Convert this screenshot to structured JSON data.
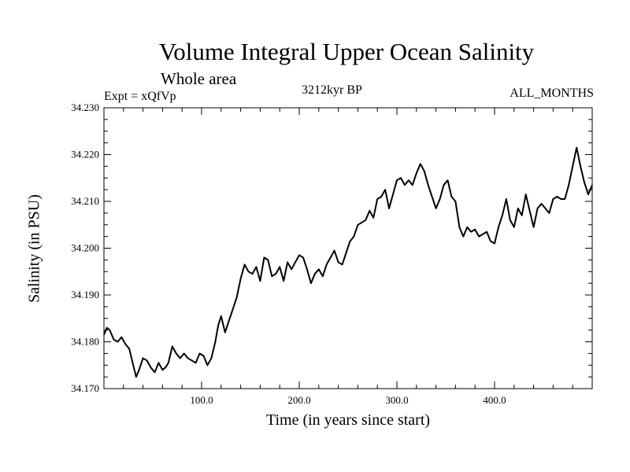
{
  "chart_data": {
    "type": "line",
    "title": "Volume Integral Upper Ocean Salinity",
    "subtitle": "Whole area",
    "experiment_label": "Expt = xQfVp",
    "period_label": "3212kyr BP",
    "months_label": "ALL_MONTHS",
    "xlabel": "Time (in years since start)",
    "ylabel": "Salinity (in PSU)",
    "xlim": [
      0,
      500
    ],
    "ylim": [
      34.17,
      34.23
    ],
    "x_ticks": [
      100,
      200,
      300,
      400
    ],
    "x_tick_labels": [
      "100.0",
      "200.0",
      "300.0",
      "400.0"
    ],
    "y_ticks": [
      34.17,
      34.18,
      34.19,
      34.2,
      34.21,
      34.22,
      34.23
    ],
    "y_tick_labels": [
      "34.170",
      "34.180",
      "34.190",
      "34.200",
      "34.210",
      "34.220",
      "34.230"
    ],
    "series": [
      {
        "name": "salinity",
        "color": "#000000",
        "x": [
          0,
          3,
          6,
          10,
          14,
          18,
          22,
          26,
          30,
          33,
          36,
          40,
          44,
          48,
          52,
          56,
          60,
          63,
          66,
          70,
          74,
          78,
          82,
          86,
          90,
          94,
          98,
          102,
          106,
          110,
          114,
          117,
          120,
          124,
          128,
          132,
          136,
          140,
          144,
          148,
          152,
          156,
          160,
          164,
          168,
          172,
          176,
          180,
          184,
          188,
          192,
          196,
          200,
          204,
          208,
          212,
          216,
          220,
          224,
          228,
          232,
          236,
          240,
          244,
          248,
          252,
          256,
          260,
          264,
          268,
          272,
          276,
          280,
          284,
          288,
          292,
          296,
          300,
          304,
          308,
          312,
          316,
          320,
          324,
          328,
          332,
          336,
          340,
          344,
          348,
          352,
          356,
          360,
          364,
          368,
          372,
          376,
          380,
          384,
          388,
          392,
          396,
          400,
          404,
          408,
          412,
          416,
          420,
          424,
          428,
          432,
          436,
          440,
          444,
          448,
          452,
          456,
          460,
          464,
          468,
          472,
          476,
          480,
          484,
          488,
          492,
          496,
          500
        ],
        "values": [
          34.1815,
          34.183,
          34.1825,
          34.1805,
          34.18,
          34.181,
          34.1795,
          34.1785,
          34.175,
          34.1725,
          34.174,
          34.1765,
          34.176,
          34.1745,
          34.1735,
          34.1755,
          34.174,
          34.1745,
          34.1755,
          34.179,
          34.1775,
          34.1765,
          34.1775,
          34.1765,
          34.176,
          34.1755,
          34.1775,
          34.177,
          34.175,
          34.1765,
          34.18,
          34.1835,
          34.1855,
          34.182,
          34.1845,
          34.187,
          34.1895,
          34.1935,
          34.1965,
          34.195,
          34.1945,
          34.196,
          34.193,
          34.198,
          34.1975,
          34.194,
          34.1945,
          34.196,
          34.193,
          34.197,
          34.1955,
          34.197,
          34.1985,
          34.198,
          34.1955,
          34.1925,
          34.1945,
          34.1955,
          34.194,
          34.1965,
          34.198,
          34.1995,
          34.197,
          34.1965,
          34.199,
          34.2015,
          34.2025,
          34.205,
          34.2055,
          34.206,
          34.208,
          34.2065,
          34.2105,
          34.211,
          34.2125,
          34.2085,
          34.2115,
          34.2145,
          34.215,
          34.2135,
          34.2145,
          34.2135,
          34.216,
          34.218,
          34.2165,
          34.2135,
          34.211,
          34.2085,
          34.2105,
          34.2135,
          34.2145,
          34.211,
          34.21,
          34.2045,
          34.2025,
          34.2045,
          34.2035,
          34.204,
          34.2025,
          34.203,
          34.2035,
          34.2015,
          34.201,
          34.2045,
          34.207,
          34.2105,
          34.206,
          34.2045,
          34.2085,
          34.207,
          34.2115,
          34.208,
          34.2045,
          34.2085,
          34.2095,
          34.2085,
          34.2075,
          34.2105,
          34.211,
          34.2105,
          34.2105,
          34.2135,
          34.2175,
          34.2215,
          34.2175,
          34.214,
          34.2115,
          34.2135
        ]
      }
    ]
  }
}
